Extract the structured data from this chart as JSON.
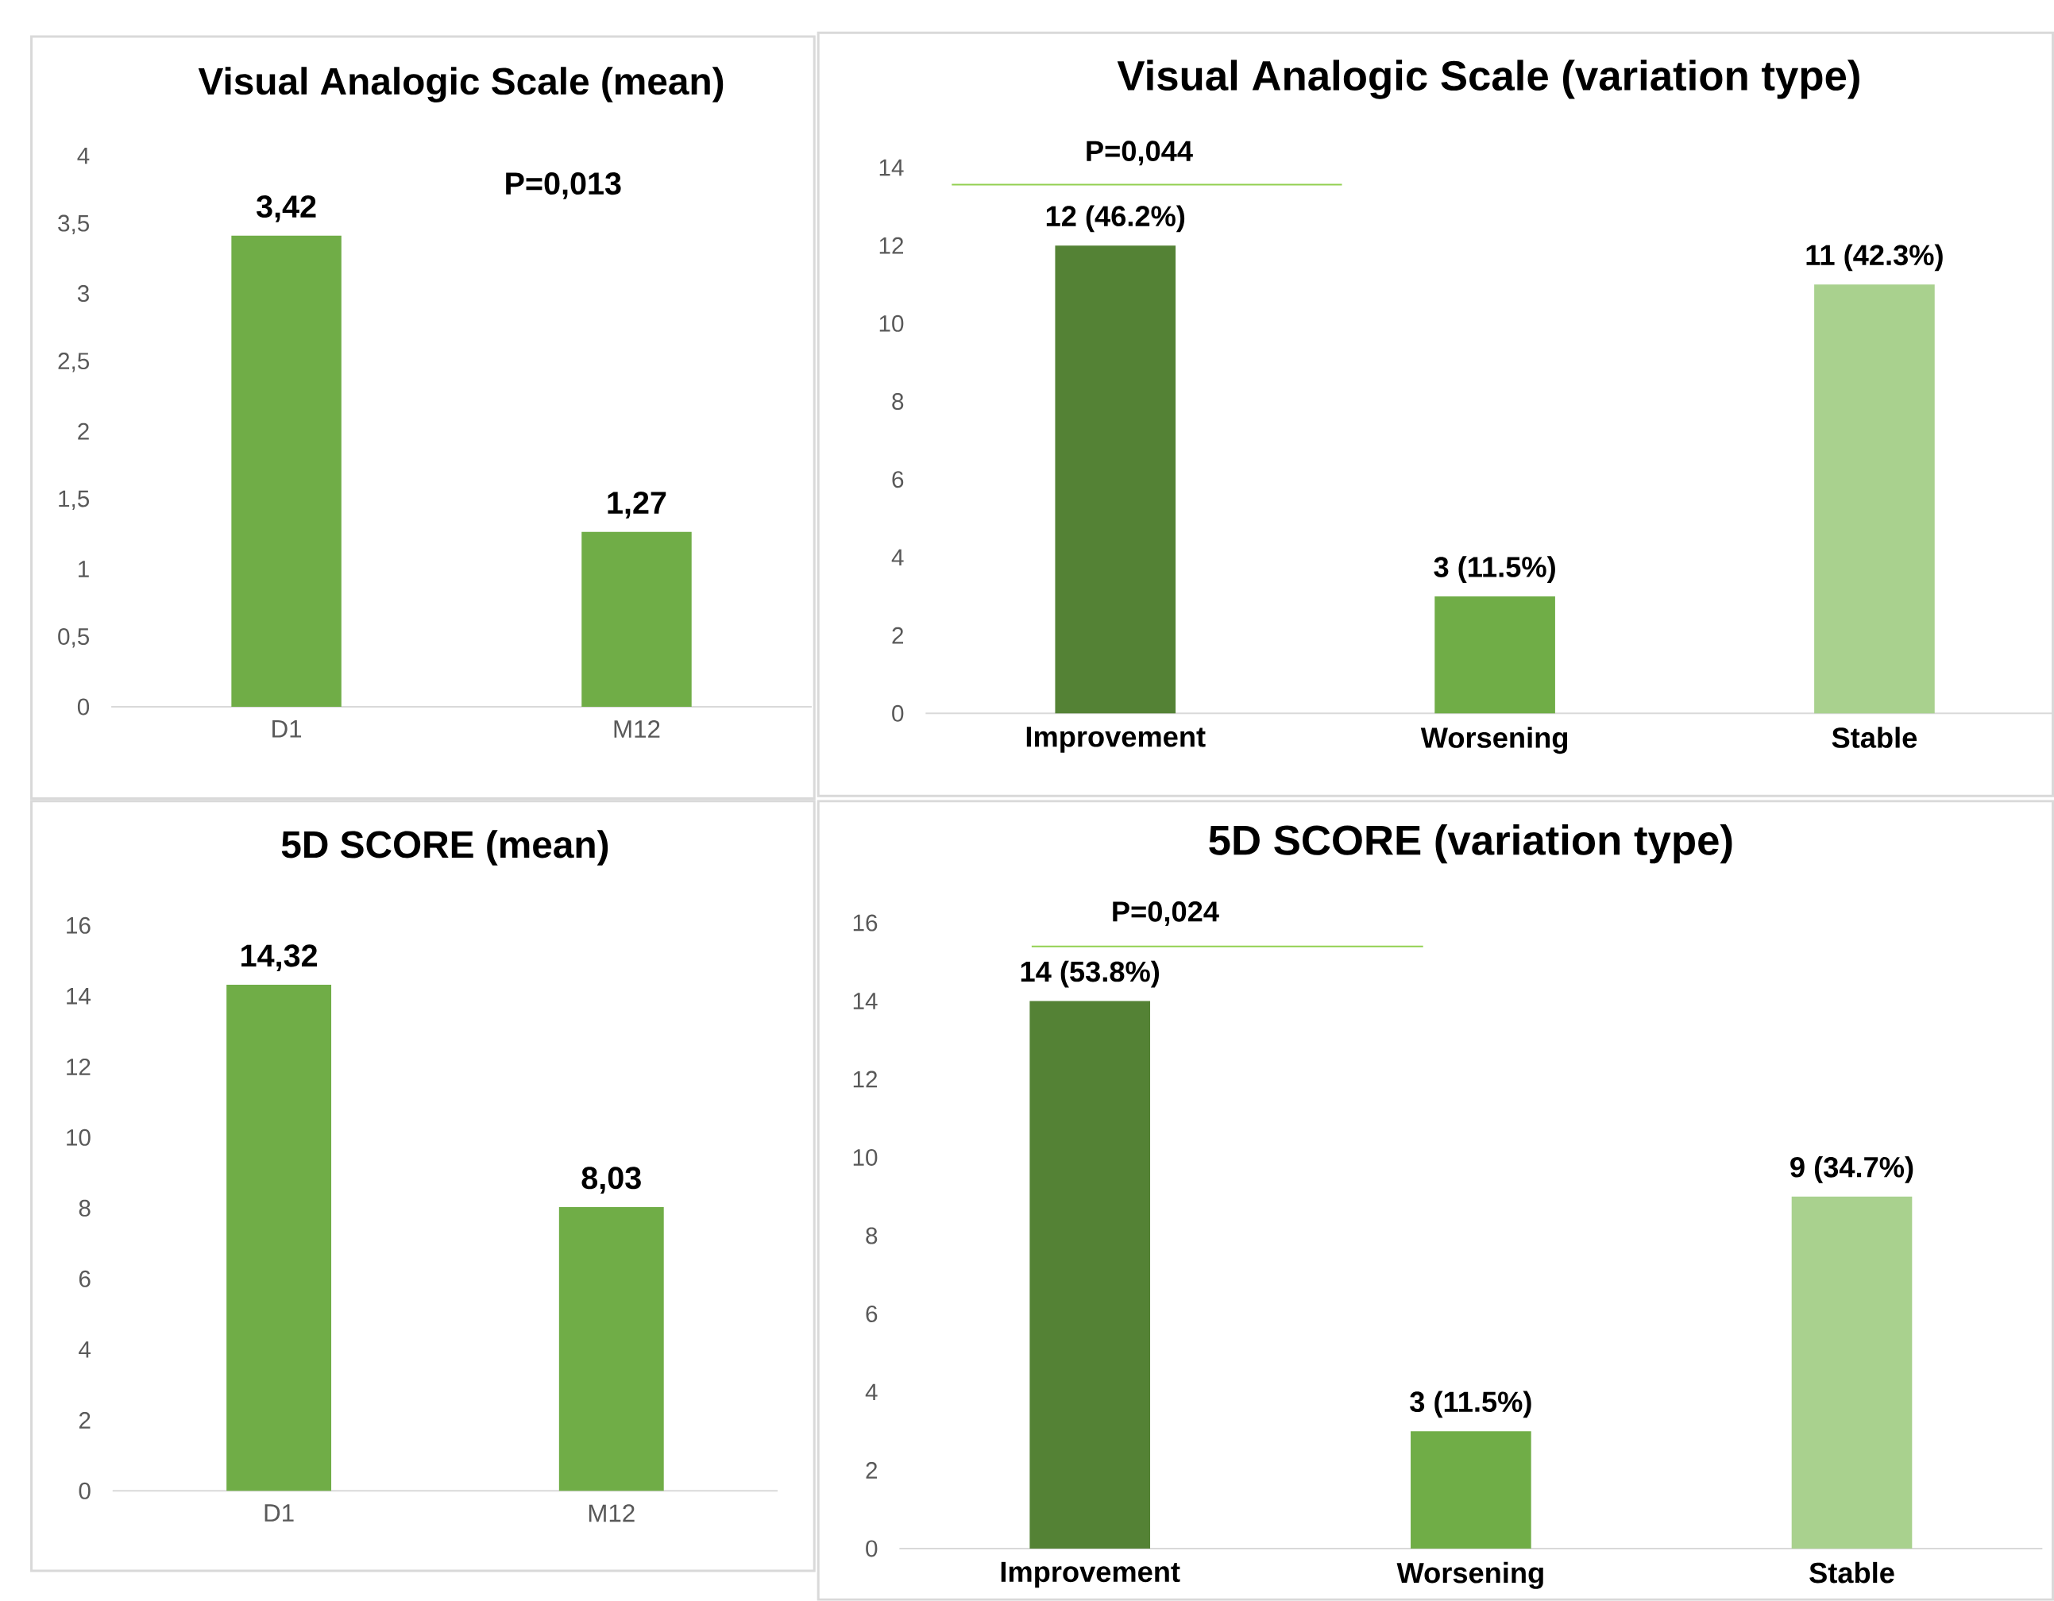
{
  "chart_data": [
    {
      "type": "bar",
      "title": "Visual Analogic Scale (mean)",
      "categories": [
        "D1",
        "M12"
      ],
      "values": [
        3.42,
        1.27
      ],
      "color": "#70ad47",
      "value_labels": [
        "3,42",
        "1,27"
      ],
      "ylim": [
        0,
        4
      ],
      "yticks": [
        0,
        {
          "value": 0.5,
          "label": "0,5"
        },
        1,
        {
          "value": 1.5,
          "label": "1,5"
        },
        2,
        {
          "value": 2.5,
          "label": "2,5"
        },
        3,
        {
          "value": 3.5,
          "label": "3,5"
        },
        4
      ],
      "annotations": [
        "P=0,013"
      ]
    },
    {
      "type": "bar",
      "title": "Visual Analogic  Scale (variation type)",
      "categories": [
        "Improvement",
        "Worsening",
        "Stable"
      ],
      "values": [
        12,
        3,
        11
      ],
      "colors": [
        "#548235",
        "#70ad47",
        "#a9d18e"
      ],
      "value_labels": [
        "12 (46.2%)",
        "3 (11.5%)",
        "11 (42.3%)"
      ],
      "ylim": [
        0,
        14
      ],
      "yticks": [
        0,
        2,
        4,
        6,
        8,
        10,
        12,
        14
      ],
      "annotations": [
        "P=0,044"
      ]
    },
    {
      "type": "bar",
      "title": "5D SCORE (mean)",
      "categories": [
        "D1",
        "M12"
      ],
      "values": [
        14.32,
        8.03
      ],
      "color": "#70ad47",
      "value_labels": [
        "14,32",
        "8,03"
      ],
      "ylim": [
        0,
        16
      ],
      "yticks": [
        0,
        2,
        4,
        6,
        8,
        10,
        12,
        14,
        16
      ]
    },
    {
      "type": "bar",
      "title": "5D SCORE  (variation type)",
      "categories": [
        "Improvement",
        "Worsening",
        "Stable"
      ],
      "values": [
        14,
        3,
        9
      ],
      "colors": [
        "#548235",
        "#70ad47",
        "#a9d18e"
      ],
      "value_labels": [
        "14 (53.8%)",
        "3  (11.5%)",
        "9 (34.7%)"
      ],
      "ylim": [
        0,
        16
      ],
      "yticks": [
        0,
        2,
        4,
        6,
        8,
        10,
        12,
        14,
        16
      ],
      "annotations": [
        "P=0,024"
      ]
    }
  ]
}
